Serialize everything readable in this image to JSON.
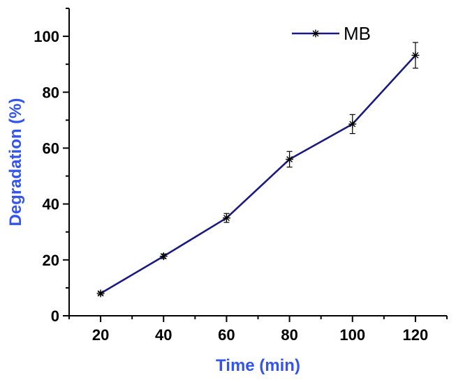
{
  "chart_data": {
    "type": "line",
    "title": "",
    "xlabel": "Time (min)",
    "ylabel": "Degradation (%)",
    "xlim": [
      10,
      130
    ],
    "ylim": [
      0,
      110
    ],
    "x_ticks": [
      20,
      40,
      60,
      80,
      100,
      120
    ],
    "y_ticks": [
      0,
      20,
      40,
      60,
      80,
      100
    ],
    "grid": false,
    "legend_position": "top-right",
    "series": [
      {
        "name": "MB",
        "x": [
          20,
          40,
          60,
          80,
          100,
          120
        ],
        "y": [
          8,
          21.3,
          35,
          56,
          68.6,
          93.2
        ],
        "error": [
          0.5,
          0.8,
          1.6,
          2.8,
          3.4,
          4.6
        ],
        "color": "#1a1a80",
        "marker": "asterisk"
      }
    ]
  },
  "colors": {
    "axis_title": "#3355ee",
    "axes": "#000000"
  }
}
